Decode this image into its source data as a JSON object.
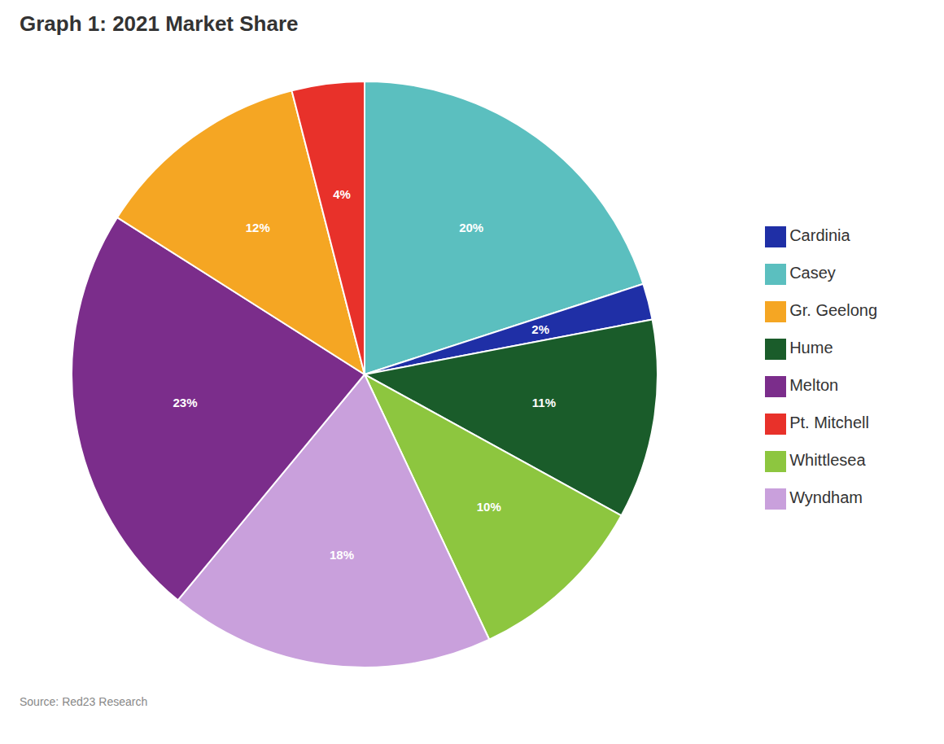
{
  "chart_data": {
    "type": "pie",
    "title": "Graph 1: 2021 Market Share",
    "categories": [
      "Casey",
      "Cardinia",
      "Hume",
      "Whittlesea",
      "Wyndham",
      "Melton",
      "Gr. Geelong",
      "Pt. Mitchell"
    ],
    "values": [
      20,
      2,
      11,
      10,
      18,
      23,
      12,
      4
    ],
    "value_labels": [
      "20%",
      "2%",
      "11%",
      "10%",
      "18%",
      "23%",
      "12%",
      "4%"
    ],
    "colors": [
      "#5BBFBF",
      "#1F2FA6",
      "#1A5C2A",
      "#8DC63F",
      "#C9A0DC",
      "#7B2D8B",
      "#F5A623",
      "#E8312A"
    ],
    "data_labels": true,
    "legend": "right",
    "annotations": [
      "Source: Red23 Research"
    ]
  }
}
